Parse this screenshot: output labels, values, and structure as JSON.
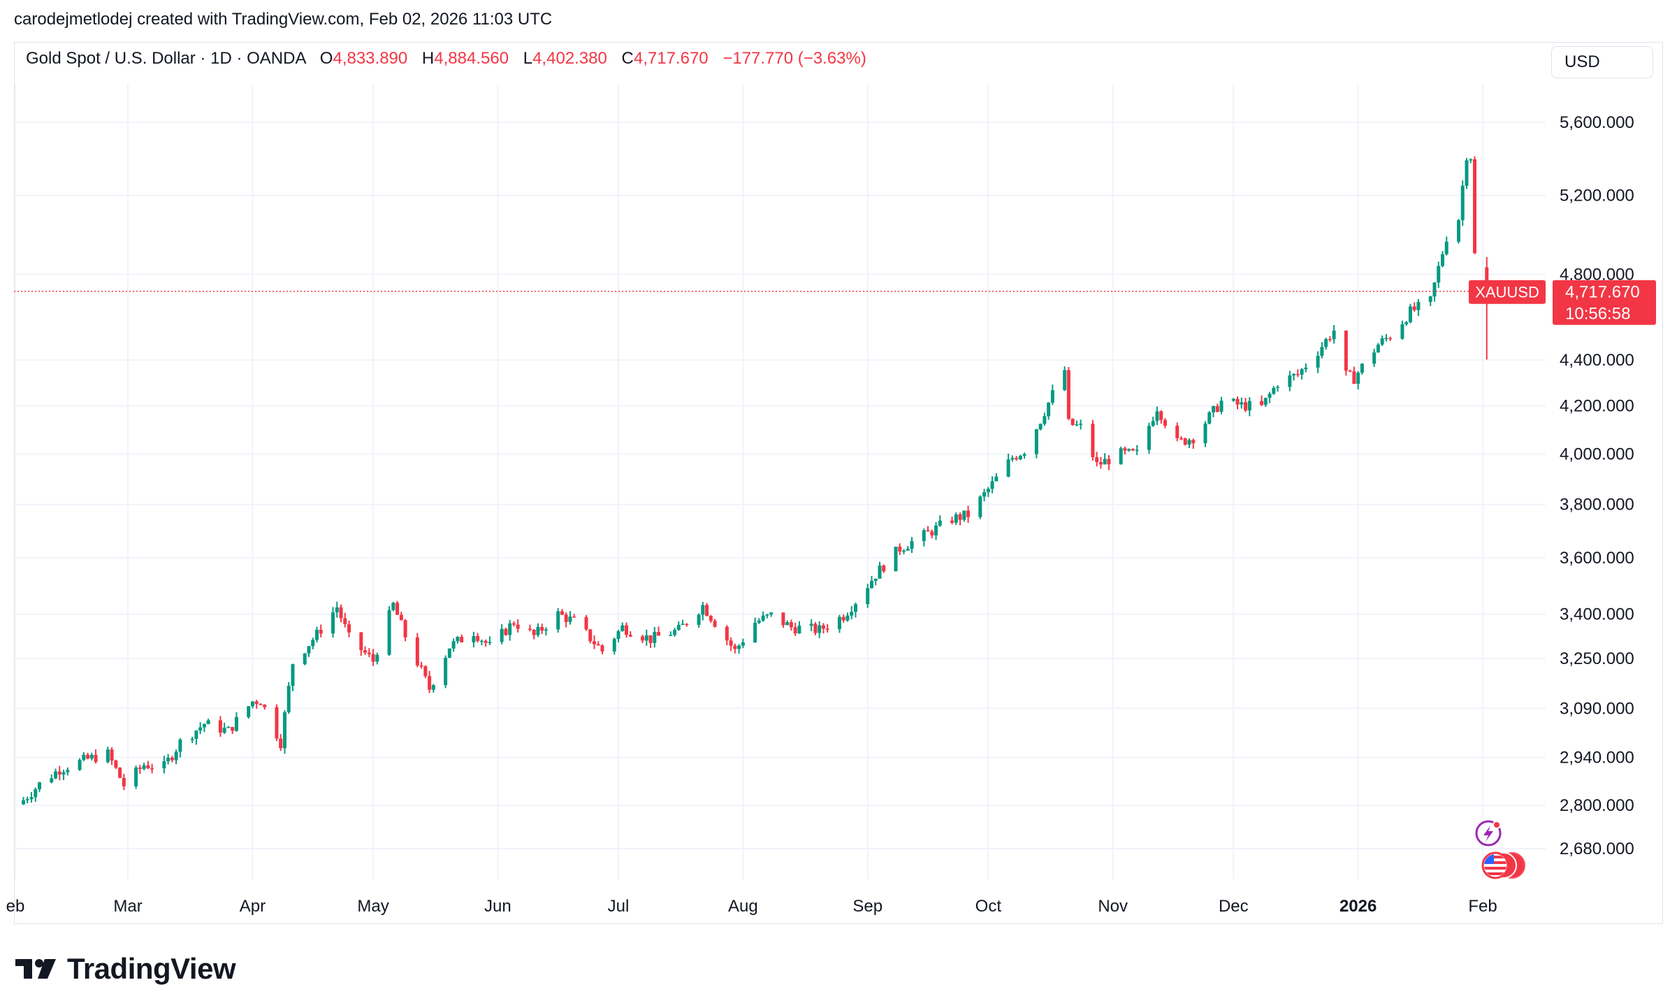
{
  "byline": "carodejmetlodej created with TradingView.com, Feb 02, 2026 11:03 UTC",
  "header": {
    "symbol": "Gold Spot / U.S. Dollar · 1D · OANDA",
    "open_label": "O",
    "open": "4,833.890",
    "high_label": "H",
    "high": "4,884.560",
    "low_label": "L",
    "low": "4,402.380",
    "close_label": "C",
    "close": "4,717.670",
    "change": "−177.770 (−3.63%)"
  },
  "currency_button": "USD",
  "price_tag": {
    "symbol": "XAUUSD",
    "price": "4,717.670",
    "countdown": "10:56:58"
  },
  "logo_text": "TradingView",
  "icons": {
    "events": "lightning-event-icon",
    "calendar": "us-flag-events-icon",
    "logo": "tradingview-logo-icon"
  },
  "colors": {
    "up": "#089981",
    "down": "#f23645",
    "grid": "#f0f3fa",
    "text": "#131722"
  },
  "chart_data": {
    "type": "candlestick",
    "title": "Gold Spot / U.S. Dollar · 1D · OANDA",
    "last_price": 4717.67,
    "y_scale": "log",
    "ylim": [
      2600,
      5700
    ],
    "y_ticks": [
      {
        "label": "5,600.000",
        "value": 5600
      },
      {
        "label": "5,200.000",
        "value": 5200
      },
      {
        "label": "4,800.000",
        "value": 4800
      },
      {
        "label": "4,400.000",
        "value": 4400
      },
      {
        "label": "4,200.000",
        "value": 4200
      },
      {
        "label": "4,000.000",
        "value": 4000
      },
      {
        "label": "3,800.000",
        "value": 3800
      },
      {
        "label": "3,600.000",
        "value": 3600
      },
      {
        "label": "3,400.000",
        "value": 3400
      },
      {
        "label": "3,250.000",
        "value": 3250
      },
      {
        "label": "3,090.000",
        "value": 3090
      },
      {
        "label": "2,940.000",
        "value": 2940
      },
      {
        "label": "2,800.000",
        "value": 2800
      },
      {
        "label": "2,680.000",
        "value": 2680
      }
    ],
    "x_ticks": [
      {
        "label": "eb",
        "date": "2025-02-01"
      },
      {
        "label": "Mar",
        "date": "2025-03-01"
      },
      {
        "label": "Apr",
        "date": "2025-04-01"
      },
      {
        "label": "May",
        "date": "2025-05-01"
      },
      {
        "label": "Jun",
        "date": "2025-06-01"
      },
      {
        "label": "Jul",
        "date": "2025-07-01"
      },
      {
        "label": "Aug",
        "date": "2025-08-01"
      },
      {
        "label": "Sep",
        "date": "2025-09-01"
      },
      {
        "label": "Oct",
        "date": "2025-10-01"
      },
      {
        "label": "Nov",
        "date": "2025-11-01"
      },
      {
        "label": "Dec",
        "date": "2025-12-01"
      },
      {
        "label": "2026",
        "date": "2026-01-01",
        "bold": true
      },
      {
        "label": "Feb",
        "date": "2026-02-01"
      }
    ],
    "series": [
      {
        "date": "2025-02-03",
        "close": 2815
      },
      {
        "date": "2025-02-07",
        "close": 2861
      },
      {
        "date": "2025-02-12",
        "close": 2905
      },
      {
        "date": "2025-02-19",
        "close": 2935
      },
      {
        "date": "2025-02-24",
        "close": 2950
      },
      {
        "date": "2025-02-28",
        "close": 2858
      },
      {
        "date": "2025-03-05",
        "close": 2918
      },
      {
        "date": "2025-03-10",
        "close": 2912
      },
      {
        "date": "2025-03-14",
        "close": 2985
      },
      {
        "date": "2025-03-20",
        "close": 3042
      },
      {
        "date": "2025-03-26",
        "close": 3020
      },
      {
        "date": "2025-04-01",
        "close": 3112
      },
      {
        "date": "2025-04-03",
        "close": 3115
      },
      {
        "date": "2025-04-08",
        "close": 2985
      },
      {
        "date": "2025-04-11",
        "close": 3237
      },
      {
        "date": "2025-04-17",
        "close": 3330
      },
      {
        "date": "2025-04-22",
        "close": 3425
      },
      {
        "date": "2025-04-25",
        "close": 3318
      },
      {
        "date": "2025-05-01",
        "close": 3242
      },
      {
        "date": "2025-05-06",
        "close": 3432
      },
      {
        "date": "2025-05-09",
        "close": 3325
      },
      {
        "date": "2025-05-14",
        "close": 3180
      },
      {
        "date": "2025-05-15",
        "close": 3152
      },
      {
        "date": "2025-05-20",
        "close": 3290
      },
      {
        "date": "2025-05-26",
        "close": 3340
      },
      {
        "date": "2025-05-30",
        "close": 3290
      },
      {
        "date": "2025-06-05",
        "close": 3373
      },
      {
        "date": "2025-06-10",
        "close": 3325
      },
      {
        "date": "2025-06-16",
        "close": 3400
      },
      {
        "date": "2025-06-20",
        "close": 3375
      },
      {
        "date": "2025-06-27",
        "close": 3275
      },
      {
        "date": "2025-07-02",
        "close": 3355
      },
      {
        "date": "2025-07-09",
        "close": 3315
      },
      {
        "date": "2025-07-16",
        "close": 3345
      },
      {
        "date": "2025-07-22",
        "close": 3430
      },
      {
        "date": "2025-07-30",
        "close": 3275
      },
      {
        "date": "2025-08-04",
        "close": 3372
      },
      {
        "date": "2025-08-08",
        "close": 3395
      },
      {
        "date": "2025-08-13",
        "close": 3355
      },
      {
        "date": "2025-08-20",
        "close": 3345
      },
      {
        "date": "2025-08-26",
        "close": 3395
      },
      {
        "date": "2025-08-29",
        "close": 3445
      },
      {
        "date": "2025-09-03",
        "close": 3540
      },
      {
        "date": "2025-09-09",
        "close": 3635
      },
      {
        "date": "2025-09-16",
        "close": 3690
      },
      {
        "date": "2025-09-22",
        "close": 3745
      },
      {
        "date": "2025-09-26",
        "close": 3760
      },
      {
        "date": "2025-10-01",
        "close": 3858
      },
      {
        "date": "2025-10-07",
        "close": 3985
      },
      {
        "date": "2025-10-10",
        "close": 4015
      },
      {
        "date": "2025-10-14",
        "close": 4140
      },
      {
        "date": "2025-10-17",
        "close": 4250
      },
      {
        "date": "2025-10-20",
        "close": 4355
      },
      {
        "date": "2025-10-21",
        "close": 4125
      },
      {
        "date": "2025-10-24",
        "close": 4110
      },
      {
        "date": "2025-10-28",
        "close": 3955
      },
      {
        "date": "2025-11-03",
        "close": 4000
      },
      {
        "date": "2025-11-07",
        "close": 4000
      },
      {
        "date": "2025-11-12",
        "close": 4195
      },
      {
        "date": "2025-11-17",
        "close": 4045
      },
      {
        "date": "2025-11-21",
        "close": 4068
      },
      {
        "date": "2025-11-28",
        "close": 4218
      },
      {
        "date": "2025-12-03",
        "close": 4202
      },
      {
        "date": "2025-12-08",
        "close": 4195
      },
      {
        "date": "2025-12-12",
        "close": 4300
      },
      {
        "date": "2025-12-17",
        "close": 4335
      },
      {
        "date": "2025-12-22",
        "close": 4440
      },
      {
        "date": "2025-12-26",
        "close": 4535
      },
      {
        "date": "2025-12-29",
        "close": 4330
      },
      {
        "date": "2025-12-31",
        "close": 4320
      },
      {
        "date": "2026-01-06",
        "close": 4470
      },
      {
        "date": "2026-01-09",
        "close": 4510
      },
      {
        "date": "2026-01-14",
        "close": 4620
      },
      {
        "date": "2026-01-19",
        "close": 4670
      },
      {
        "date": "2026-01-21",
        "close": 4830
      },
      {
        "date": "2026-01-23",
        "close": 4985
      },
      {
        "date": "2026-01-26",
        "close": 5080
      },
      {
        "date": "2026-01-28",
        "close": 5420
      },
      {
        "date": "2026-01-29",
        "close": 5410
      },
      {
        "date": "2026-01-30",
        "close": 4895
      },
      {
        "date": "2026-02-02",
        "close": 4717.67
      }
    ],
    "last_candle": {
      "date": "2026-02-02",
      "open": 4833.89,
      "high": 4884.56,
      "low": 4402.38,
      "close": 4717.67
    }
  }
}
